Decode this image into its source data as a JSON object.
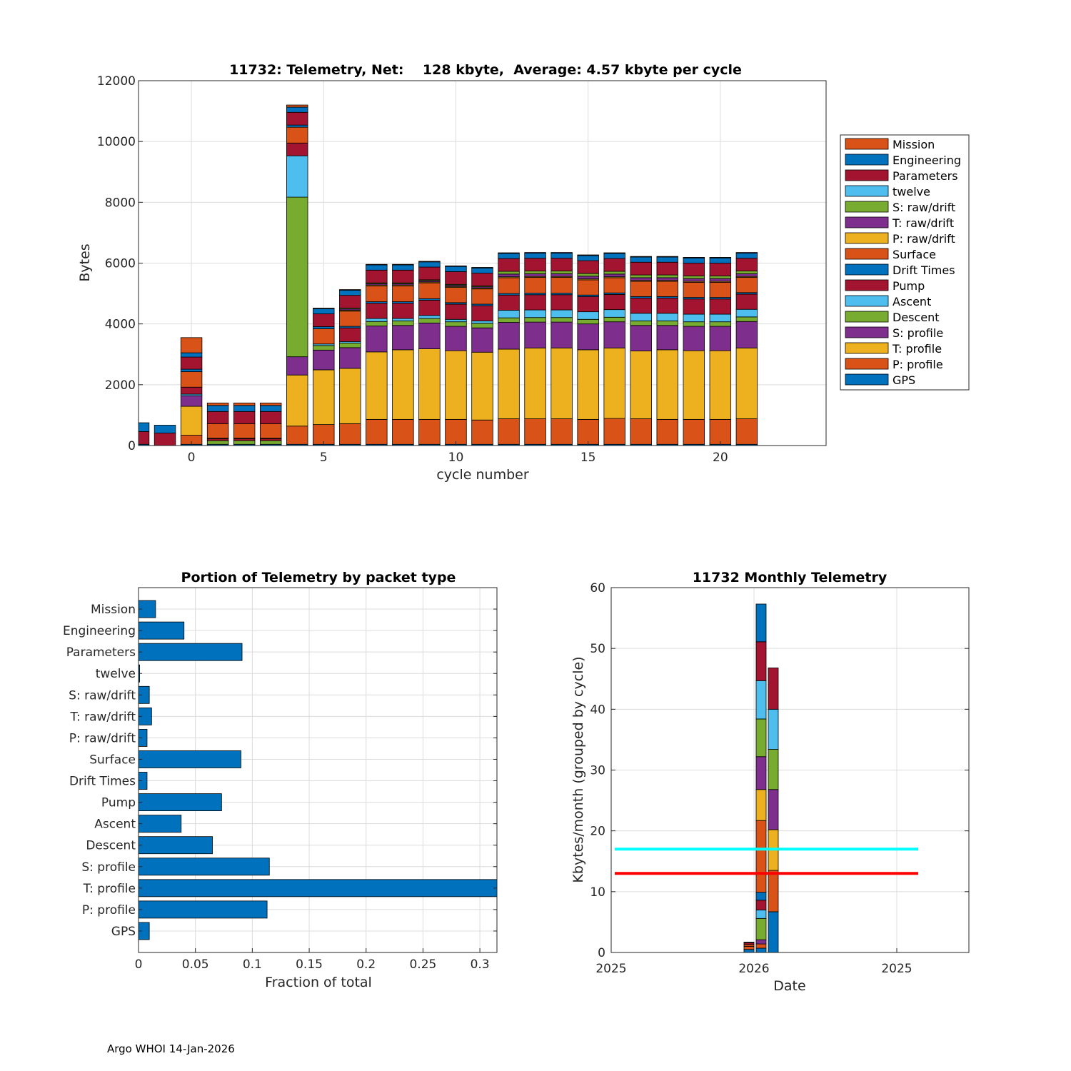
{
  "footer": "Argo WHOI 14-Jan-2026",
  "colors": {
    "Mission": "#D95319",
    "Engineering": "#0072BD",
    "Parameters": "#A2142F",
    "twelve": "#4DBEEE",
    "S: raw/drift": "#77AC30",
    "T: raw/drift": "#7E2F8E",
    "P: raw/drift": "#EDB120",
    "Surface": "#D95319",
    "Drift Times": "#0072BD",
    "Pump": "#A2142F",
    "Ascent": "#4DBEEE",
    "Descent": "#77AC30",
    "S: profile": "#7E2F8E",
    "T: profile": "#EDB120",
    "P: profile": "#D95319",
    "GPS": "#0072BD",
    "bar": "#0072BD",
    "cyan_line": "#00FFFF",
    "red_line": "#FF0000"
  },
  "chart_data": [
    {
      "type": "bar",
      "stacked": true,
      "title": "11732: Telemetry, Net:    128 kbyte,  Average: 4.57 kbyte per cycle",
      "xlabel": "cycle number",
      "ylabel": "Bytes",
      "xlim": [
        -2,
        24
      ],
      "ylim": [
        0,
        12000
      ],
      "xticks": [
        0,
        5,
        10,
        15,
        20
      ],
      "yticks": [
        0,
        2000,
        4000,
        6000,
        8000,
        10000,
        12000
      ],
      "grid": true,
      "legend_position": "outside-right",
      "legend": [
        "Mission",
        "Engineering",
        "Parameters",
        "twelve",
        "S: raw/drift",
        "T: raw/drift",
        "P: raw/drift",
        "Surface",
        "Drift Times",
        "Pump",
        "Ascent",
        "Descent",
        "S: profile",
        "T: profile",
        "P: profile",
        "GPS"
      ],
      "stack_order": [
        "GPS",
        "P: profile",
        "T: profile",
        "S: profile",
        "Descent",
        "Ascent",
        "Pump",
        "Drift Times",
        "Surface",
        "P: raw/drift",
        "T: raw/drift",
        "S: raw/drift",
        "twelve",
        "Parameters",
        "Engineering",
        "Mission"
      ],
      "cycles": [
        -2,
        -1,
        0,
        1,
        2,
        3,
        4,
        5,
        6,
        7,
        8,
        9,
        10,
        11,
        12,
        13,
        14,
        15,
        16,
        17,
        18,
        19,
        20,
        21
      ],
      "series": [
        {
          "name": "GPS",
          "values": [
            40,
            0,
            40,
            40,
            40,
            40,
            40,
            40,
            40,
            40,
            40,
            40,
            40,
            40,
            40,
            40,
            40,
            40,
            40,
            40,
            40,
            40,
            40,
            40
          ]
        },
        {
          "name": "P: profile",
          "values": [
            0,
            0,
            300,
            0,
            0,
            0,
            600,
            650,
            680,
            820,
            820,
            820,
            820,
            800,
            840,
            840,
            840,
            820,
            850,
            840,
            820,
            820,
            820,
            840
          ]
        },
        {
          "name": "T: profile",
          "values": [
            0,
            0,
            950,
            0,
            0,
            0,
            1680,
            1800,
            1820,
            2220,
            2290,
            2320,
            2260,
            2230,
            2290,
            2330,
            2330,
            2290,
            2320,
            2230,
            2290,
            2260,
            2260,
            2330
          ]
        },
        {
          "name": "S: profile",
          "values": [
            0,
            0,
            350,
            0,
            0,
            0,
            600,
            650,
            680,
            850,
            800,
            850,
            800,
            800,
            880,
            850,
            850,
            850,
            860,
            840,
            800,
            800,
            800,
            870
          ]
        },
        {
          "name": "Descent",
          "values": [
            0,
            0,
            0,
            120,
            120,
            120,
            5250,
            150,
            150,
            150,
            150,
            150,
            150,
            150,
            150,
            150,
            150,
            150,
            150,
            150,
            150,
            150,
            150,
            150
          ]
        },
        {
          "name": "Ascent",
          "values": [
            0,
            0,
            50,
            0,
            0,
            0,
            1360,
            50,
            50,
            100,
            80,
            100,
            80,
            80,
            250,
            250,
            250,
            250,
            250,
            250,
            250,
            250,
            250,
            250
          ]
        },
        {
          "name": "Pump",
          "values": [
            0,
            0,
            0,
            60,
            60,
            60,
            0,
            450,
            450,
            500,
            500,
            500,
            500,
            500,
            500,
            500,
            500,
            500,
            500,
            500,
            500,
            500,
            500,
            500
          ]
        },
        {
          "name": "Drift Times",
          "values": [
            0,
            0,
            0,
            20,
            20,
            20,
            0,
            50,
            50,
            50,
            50,
            50,
            50,
            50,
            50,
            50,
            50,
            50,
            50,
            50,
            50,
            50,
            50,
            50
          ]
        },
        {
          "name": "Surface",
          "values": [
            0,
            0,
            0,
            480,
            480,
            480,
            0,
            500,
            500,
            520,
            520,
            520,
            500,
            500,
            520,
            520,
            520,
            500,
            500,
            500,
            500,
            500,
            500,
            500
          ]
        },
        {
          "name": "P: raw/drift",
          "values": [
            0,
            0,
            0,
            0,
            0,
            0,
            0,
            30,
            30,
            30,
            30,
            30,
            30,
            30,
            30,
            30,
            30,
            30,
            30,
            30,
            30,
            30,
            30,
            30
          ]
        },
        {
          "name": "T: raw/drift",
          "values": [
            0,
            0,
            0,
            0,
            0,
            0,
            0,
            40,
            40,
            40,
            40,
            40,
            40,
            40,
            90,
            90,
            90,
            90,
            90,
            90,
            90,
            90,
            90,
            90
          ]
        },
        {
          "name": "S: raw/drift",
          "values": [
            0,
            0,
            0,
            0,
            0,
            0,
            0,
            30,
            30,
            30,
            30,
            30,
            30,
            30,
            90,
            90,
            90,
            90,
            90,
            90,
            90,
            90,
            90,
            90
          ]
        },
        {
          "name": "twelve",
          "values": [
            0,
            0,
            0,
            0,
            0,
            0,
            0,
            0,
            0,
            0,
            0,
            0,
            0,
            0,
            0,
            0,
            0,
            0,
            0,
            0,
            0,
            0,
            0,
            0
          ]
        },
        {
          "name": "Parameters",
          "values": [
            420,
            410,
            450,
            400,
            400,
            400,
            420,
            420,
            420,
            420,
            420,
            420,
            420,
            420,
            420,
            420,
            420,
            420,
            420,
            420,
            420,
            420,
            420,
            420
          ]
        },
        {
          "name": "Engineering",
          "values": [
            290,
            260,
            150,
            200,
            200,
            200,
            170,
            170,
            170,
            170,
            170,
            170,
            170,
            170,
            170,
            170,
            170,
            170,
            170,
            170,
            170,
            170,
            170,
            170
          ]
        },
        {
          "name": "Mission",
          "values": [
            0,
            0,
            500,
            80,
            80,
            80,
            70,
            20,
            20,
            20,
            20,
            20,
            20,
            20,
            20,
            20,
            20,
            20,
            20,
            20,
            20,
            20,
            20,
            20
          ]
        }
      ],
      "mid_stack": {
        "0": [
          [
            "Pump",
            230
          ],
          [
            "Surface",
            510
          ],
          [
            "Drift Times",
            80
          ],
          [
            "Parameters",
            400
          ],
          [
            "Engineering",
            140
          ],
          [
            "Mission",
            500
          ]
        ],
        "4": [
          [
            "Parameters",
            420
          ],
          [
            "Surface",
            520
          ],
          [
            "Drift Times",
            70
          ],
          [
            "Parameters",
            420
          ],
          [
            "Engineering",
            170
          ],
          [
            "Mission",
            70
          ]
        ],
        "5": [
          [
            "Surface",
            500
          ],
          [
            "Drift Times",
            70
          ],
          [
            "Pump",
            420
          ],
          [
            "Engineering",
            170
          ],
          [
            "Mission",
            20
          ]
        ]
      }
    },
    {
      "type": "bar",
      "orientation": "horizontal",
      "title": "Portion of Telemetry by packet type",
      "xlabel": "Fraction of total",
      "ylabel": "",
      "xlim": [
        0,
        0.315
      ],
      "xticks": [
        0,
        0.05,
        0.1,
        0.15,
        0.2,
        0.25,
        0.3
      ],
      "xtick_labels": [
        "0",
        "0.05",
        "0.1",
        "0.15",
        "0.2",
        "0.25",
        "0.3"
      ],
      "grid": true,
      "categories": [
        "Mission",
        "Engineering",
        "Parameters",
        "twelve",
        "S: raw/drift",
        "T: raw/drift",
        "P: raw/drift",
        "Surface",
        "Drift Times",
        "Pump",
        "Ascent",
        "Descent",
        "S: profile",
        "T: profile",
        "P: profile",
        "GPS"
      ],
      "values": [
        0.015,
        0.04,
        0.091,
        0.001,
        0.0095,
        0.0115,
        0.0075,
        0.09,
        0.0075,
        0.073,
        0.0375,
        0.065,
        0.115,
        0.315,
        0.113,
        0.0095
      ]
    },
    {
      "type": "bar",
      "stacked": true,
      "title": "11732 Monthly Telemetry",
      "xlabel": "Date",
      "ylabel": "Kbytes/month (grouped by cycle)",
      "ylim": [
        0,
        60
      ],
      "yticks": [
        0,
        10,
        20,
        30,
        40,
        50,
        60
      ],
      "xtick_labels": [
        "2025",
        "2026",
        "2025"
      ],
      "grid": true,
      "hlines": [
        {
          "name": "cyan",
          "y": 17,
          "color": "#00FFFF"
        },
        {
          "name": "red",
          "y": 13,
          "color": "#FF0000"
        }
      ],
      "bars": [
        {
          "month": "Dec 2025",
          "segments": [
            [
              "GPS",
              0.5
            ],
            [
              "P: profile",
              0.5
            ],
            [
              "Surface",
              0.3
            ],
            [
              "Parameters",
              0.3
            ],
            [
              "Engineering",
              0.1
            ]
          ]
        },
        {
          "month": "Jan 2026",
          "segments": [
            [
              "GPS",
              0.7
            ],
            [
              "P: profile",
              0.7
            ],
            [
              "T: raw/drift",
              0.7
            ],
            [
              "Descent",
              3.5
            ],
            [
              "Ascent",
              1.4
            ],
            [
              "Pump",
              1.6
            ],
            [
              "Drift Times",
              1.3
            ],
            [
              "P: profile",
              11.8
            ],
            [
              "T: profile",
              5.1
            ],
            [
              "S: profile",
              5.4
            ],
            [
              "Descent",
              6.2
            ],
            [
              "Ascent",
              6.3
            ],
            [
              "Pump",
              6.4
            ],
            [
              "Engineering",
              6.2
            ]
          ]
        },
        {
          "month": "Feb 2026",
          "segments": [
            [
              "GPS",
              6.7
            ],
            [
              "P: profile",
              6.8
            ],
            [
              "T: profile",
              6.7
            ],
            [
              "S: profile",
              6.6
            ],
            [
              "Descent",
              6.6
            ],
            [
              "Ascent",
              6.6
            ],
            [
              "Pump",
              6.8
            ]
          ]
        }
      ]
    }
  ]
}
